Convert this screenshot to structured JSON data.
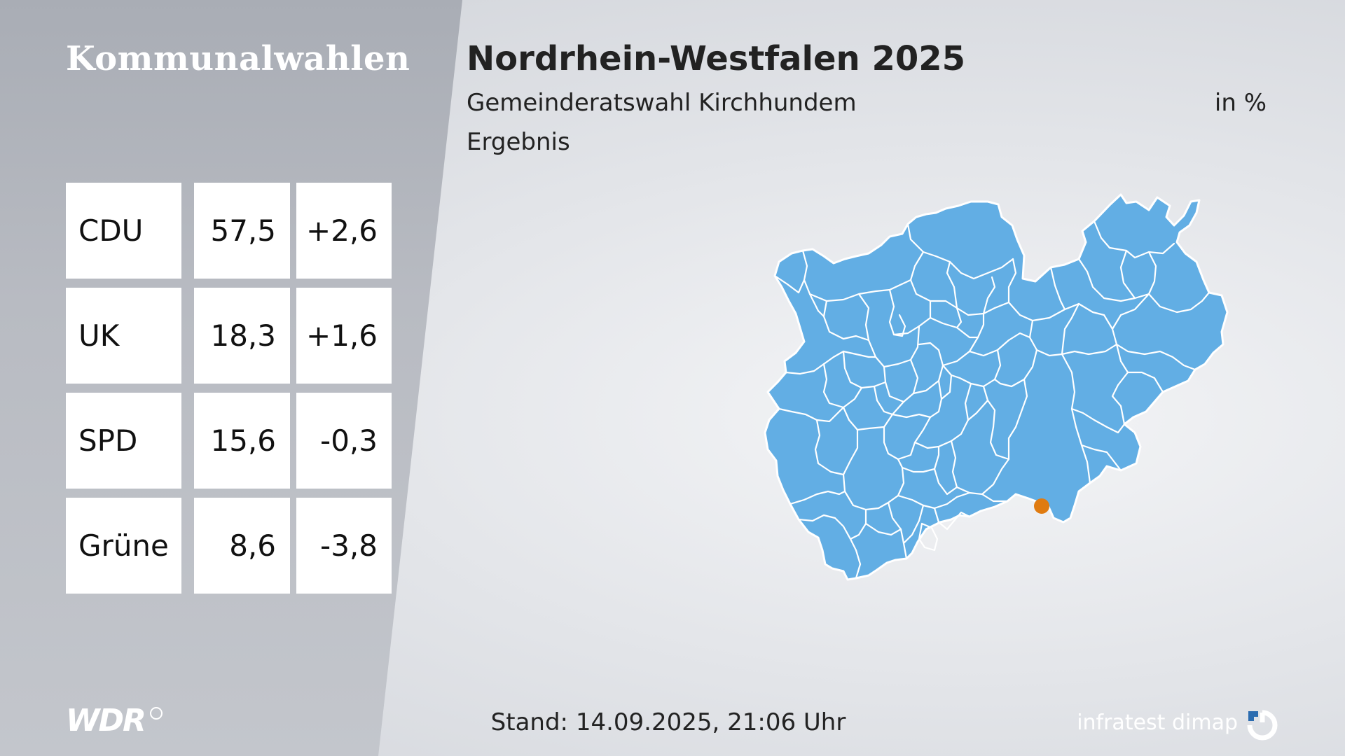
{
  "brand": {
    "title": "Kommunalwahlen"
  },
  "header": {
    "title": "Nordrhein-Westfalen 2025",
    "subtitle": "Gemeinderatswahl Kirchhundem",
    "unit": "in %",
    "result_label": "Ergebnis"
  },
  "results": [
    {
      "party": "CDU",
      "value": "57,5",
      "diff": "+2,6"
    },
    {
      "party": "UK",
      "value": "18,3",
      "diff": "+1,6"
    },
    {
      "party": "SPD",
      "value": "15,6",
      "diff": "-0,3"
    },
    {
      "party": "Grüne",
      "value": "8,6",
      "diff": "-3,8"
    }
  ],
  "map": {
    "region_color": "#62aee4",
    "border_color": "#ffffff",
    "marker_color": "#e07b10",
    "marker_icon": "location-dot-icon"
  },
  "footer": {
    "broadcaster": "WDR",
    "timestamp": "Stand: 14.09.2025, 21:06 Uhr",
    "pollster": "infratest dimap"
  },
  "colors": {
    "left_panel": "#b3b7be",
    "background": "#e4e6ea",
    "cell": "#ffffff"
  }
}
